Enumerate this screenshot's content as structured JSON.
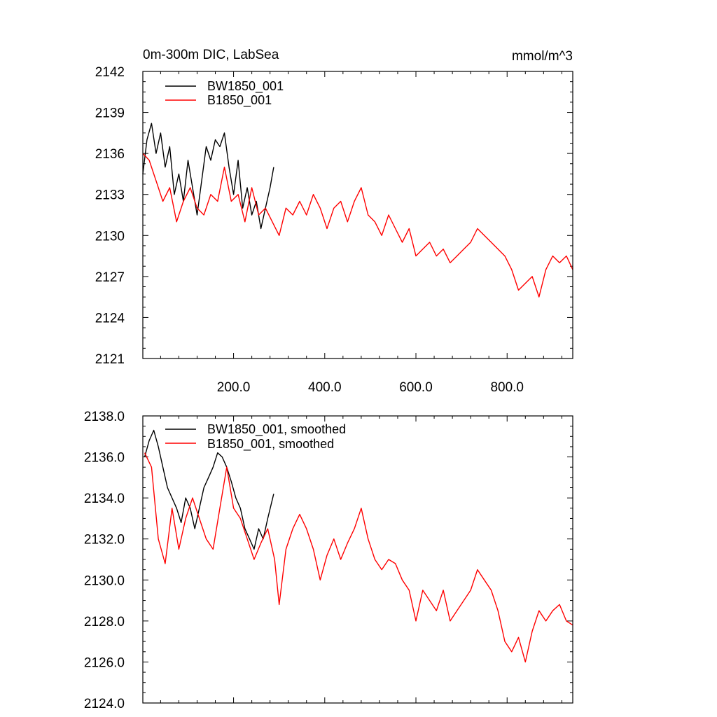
{
  "chart_data": [
    {
      "type": "line",
      "title": "0m-300m DIC, LabSea",
      "units": "mmol/m^3",
      "xlim": [
        1,
        944
      ],
      "ylim": [
        2121,
        2142
      ],
      "x_ticks": [
        200,
        400,
        600,
        800
      ],
      "x_tick_labels": [
        "200.0",
        "400.0",
        "600.0",
        "800.0"
      ],
      "y_ticks": [
        2121,
        2124,
        2127,
        2130,
        2133,
        2136,
        2139,
        2142
      ],
      "y_tick_labels": [
        "2121",
        "2124",
        "2127",
        "2130",
        "2133",
        "2136",
        "2139",
        "2142"
      ],
      "legend": "top-left",
      "grid": false,
      "series": [
        {
          "name": "BW1850_001",
          "color": "#000000",
          "x": [
            1,
            10,
            20,
            30,
            40,
            50,
            60,
            70,
            80,
            90,
            100,
            110,
            120,
            130,
            140,
            150,
            160,
            170,
            180,
            190,
            200,
            210,
            220,
            230,
            240,
            250,
            260,
            270,
            280,
            288
          ],
          "values": [
            2134.5,
            2137.0,
            2138.2,
            2136.0,
            2137.5,
            2135.0,
            2136.5,
            2133.0,
            2134.5,
            2132.5,
            2135.5,
            2133.5,
            2131.5,
            2134.0,
            2136.5,
            2135.5,
            2137.0,
            2136.5,
            2137.5,
            2135.0,
            2133.0,
            2135.5,
            2132.0,
            2133.5,
            2131.5,
            2132.5,
            2130.5,
            2132.0,
            2133.5,
            2135.0
          ]
        },
        {
          "name": "B1850_001",
          "color": "#ff0000",
          "x": [
            1,
            15,
            30,
            45,
            60,
            75,
            90,
            105,
            120,
            135,
            150,
            165,
            180,
            195,
            210,
            225,
            240,
            255,
            270,
            285,
            300,
            315,
            330,
            345,
            360,
            375,
            390,
            405,
            420,
            435,
            450,
            465,
            480,
            495,
            510,
            525,
            540,
            555,
            570,
            585,
            600,
            615,
            630,
            645,
            660,
            675,
            690,
            705,
            720,
            735,
            750,
            765,
            780,
            795,
            810,
            825,
            840,
            855,
            870,
            885,
            900,
            915,
            930,
            944
          ],
          "values": [
            2136.0,
            2135.5,
            2134.0,
            2132.5,
            2133.5,
            2131.0,
            2132.5,
            2133.5,
            2132.0,
            2131.5,
            2133.0,
            2132.5,
            2135.0,
            2132.5,
            2133.0,
            2131.0,
            2133.5,
            2131.5,
            2132.0,
            2131.0,
            2130.0,
            2132.0,
            2131.5,
            2132.5,
            2131.5,
            2133.0,
            2132.0,
            2130.5,
            2132.0,
            2132.5,
            2131.0,
            2132.5,
            2133.5,
            2131.5,
            2131.0,
            2130.0,
            2131.5,
            2130.5,
            2129.5,
            2130.5,
            2128.5,
            2129.0,
            2129.5,
            2128.5,
            2129.0,
            2128.0,
            2128.5,
            2129.0,
            2129.5,
            2130.5,
            2130.0,
            2129.5,
            2129.0,
            2128.5,
            2127.5,
            2126.0,
            2126.5,
            2127.0,
            2125.5,
            2127.5,
            2128.5,
            2128.0,
            2128.5,
            2127.5
          ]
        }
      ]
    },
    {
      "type": "line",
      "xlim": [
        1,
        944
      ],
      "ylim": [
        2124.0,
        2138.0
      ],
      "x_ticks": [
        200,
        400,
        600,
        800
      ],
      "y_ticks": [
        2124,
        2126,
        2128,
        2130,
        2132,
        2134,
        2136,
        2138
      ],
      "y_tick_labels": [
        "2124.0",
        "2126.0",
        "2128.0",
        "2130.0",
        "2132.0",
        "2134.0",
        "2136.0",
        "2138.0"
      ],
      "legend": "top-left",
      "grid": false,
      "series": [
        {
          "name": "BW1850_001, smoothed",
          "color": "#000000",
          "x": [
            5,
            15,
            25,
            35,
            45,
            55,
            65,
            75,
            85,
            95,
            105,
            115,
            125,
            135,
            145,
            155,
            165,
            175,
            185,
            195,
            205,
            215,
            225,
            235,
            245,
            255,
            265,
            275,
            288
          ],
          "values": [
            2136.0,
            2136.8,
            2137.3,
            2136.5,
            2135.5,
            2134.5,
            2134.0,
            2133.5,
            2132.8,
            2134.0,
            2133.5,
            2132.5,
            2133.5,
            2134.5,
            2135.0,
            2135.5,
            2136.2,
            2136.0,
            2135.5,
            2134.8,
            2134.0,
            2133.5,
            2132.5,
            2132.0,
            2131.5,
            2132.5,
            2132.0,
            2133.0,
            2134.2
          ]
        },
        {
          "name": "B1850_001, smoothed",
          "color": "#ff0000",
          "x": [
            5,
            20,
            35,
            50,
            65,
            80,
            95,
            110,
            125,
            140,
            155,
            170,
            185,
            200,
            215,
            230,
            245,
            260,
            275,
            290,
            300,
            315,
            330,
            345,
            360,
            375,
            390,
            405,
            420,
            435,
            450,
            465,
            480,
            495,
            510,
            525,
            540,
            555,
            570,
            585,
            600,
            615,
            630,
            645,
            660,
            675,
            690,
            705,
            720,
            735,
            750,
            765,
            780,
            795,
            810,
            825,
            840,
            855,
            870,
            885,
            900,
            915,
            930,
            944
          ],
          "values": [
            2136.2,
            2135.5,
            2132.0,
            2130.8,
            2133.5,
            2131.5,
            2133.0,
            2134.0,
            2133.0,
            2132.0,
            2131.5,
            2133.5,
            2135.5,
            2133.5,
            2133.0,
            2132.0,
            2131.0,
            2131.8,
            2132.5,
            2131.0,
            2128.8,
            2131.5,
            2132.5,
            2133.2,
            2132.5,
            2131.5,
            2130.0,
            2131.2,
            2132.0,
            2131.0,
            2131.8,
            2132.5,
            2133.5,
            2132.0,
            2131.0,
            2130.5,
            2131.0,
            2130.8,
            2130.0,
            2129.5,
            2128.0,
            2129.5,
            2129.0,
            2128.5,
            2129.5,
            2128.0,
            2128.5,
            2129.0,
            2129.5,
            2130.5,
            2130.0,
            2129.5,
            2128.5,
            2127.0,
            2126.5,
            2127.2,
            2126.0,
            2127.5,
            2128.5,
            2128.0,
            2128.5,
            2128.8,
            2128.0,
            2127.8
          ]
        }
      ]
    }
  ]
}
